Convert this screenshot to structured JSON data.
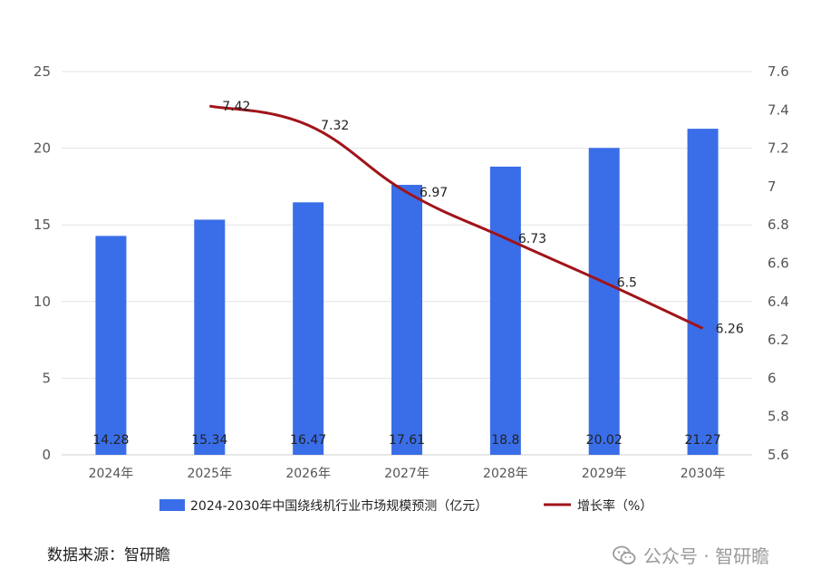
{
  "chart_data": {
    "type": "bar",
    "categories": [
      "2024年",
      "2025年",
      "2026年",
      "2027年",
      "2028年",
      "2029年",
      "2030年"
    ],
    "series": [
      {
        "name": "2024-2030年中国绕线机行业市场规模预测（亿元）",
        "type": "bar",
        "axis": "left",
        "values": [
          14.28,
          15.34,
          16.47,
          17.61,
          18.8,
          20.02,
          21.27
        ],
        "color": "#3a6ee8"
      },
      {
        "name": "增长率（%）",
        "type": "line",
        "axis": "right",
        "values": [
          null,
          7.42,
          7.32,
          6.97,
          6.73,
          6.5,
          6.26
        ],
        "color": "#a0141a"
      }
    ],
    "left_axis": {
      "min": 0,
      "max": 25,
      "ticks": [
        "0",
        "5",
        "10",
        "15",
        "20",
        "25"
      ]
    },
    "right_axis": {
      "min": 5.6,
      "max": 7.6,
      "ticks": [
        "5.6",
        "5.8",
        "6",
        "6.2",
        "6.4",
        "6.6",
        "6.8",
        "7",
        "7.2",
        "7.4",
        "7.6"
      ]
    },
    "bar_labels": [
      "14.28",
      "15.34",
      "16.47",
      "17.61",
      "18.8",
      "20.02",
      "21.27"
    ],
    "line_labels": [
      "",
      "7.42",
      "7.32",
      "6.97",
      "6.73",
      "6.5",
      "6.26"
    ],
    "grid": true,
    "legend_position": "bottom"
  },
  "source_text": "数据来源：智研瞻",
  "watermark_text": "公众号 · 智研瞻",
  "watermark_icon": "wechat-icon"
}
